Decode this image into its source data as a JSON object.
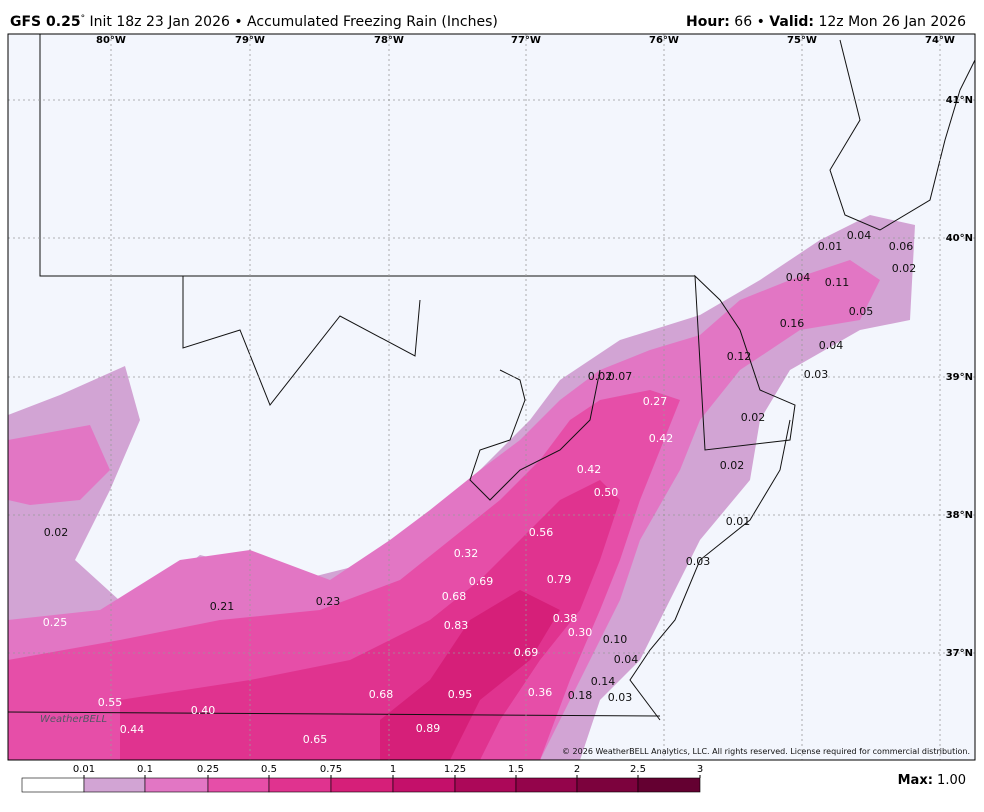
{
  "header": {
    "model": "GFS 0.25",
    "degree": "°",
    "init": " Init 18z 23 Jan 2026 • Accumulated Freezing Rain (Inches)",
    "hour_label": "Hour:",
    "hour_value": " 66 • ",
    "valid_label": "Valid:",
    "valid_value": " 12z Mon 26 Jan 2026"
  },
  "longitudes": [
    "80°W",
    "79°W",
    "78°W",
    "77°W",
    "76°W",
    "75°W",
    "74°W"
  ],
  "latitudes": [
    "41°N",
    "40°N",
    "39°N",
    "38°N",
    "37°N"
  ],
  "amounts": [
    "0.02",
    "0.25",
    "0.21",
    "0.23",
    "0.55",
    "0.44",
    "0.40",
    "0.65",
    "0.68",
    "0.95",
    "0.89",
    "0.69",
    "0.36",
    "0.18",
    "0.03",
    "0.14",
    "0.04",
    "0.10",
    "0.30",
    "0.38",
    "0.83",
    "0.68",
    "0.69",
    "0.79",
    "0.32",
    "0.56",
    "0.50",
    "0.42",
    "0.42",
    "0.27",
    "0.02",
    "0.07",
    "0.02",
    "0.02",
    "0.01",
    "0.03",
    "0.12",
    "0.03",
    "0.04",
    "0.16",
    "0.05",
    "0.04",
    "0.11",
    "0.01",
    "0.04",
    "0.06",
    "0.02"
  ],
  "logo": "WeatherBELL",
  "copyright": "© 2026 WeatherBELL Analytics, LLC. All rights reserved. License required for commercial distribution.",
  "legend": {
    "ticks": [
      0.01,
      0.1,
      0.25,
      0.5,
      0.75,
      1,
      1.25,
      1.5,
      2,
      2.5,
      3
    ],
    "colors": [
      "#ffffff",
      "#d2a4d4",
      "#e276c4",
      "#e64ea8",
      "#e0338f",
      "#d61f79",
      "#c4106a",
      "#ac0859",
      "#94044b",
      "#7c023d",
      "#640031"
    ]
  },
  "max_label": "Max:",
  "max_value": " 1.00"
}
